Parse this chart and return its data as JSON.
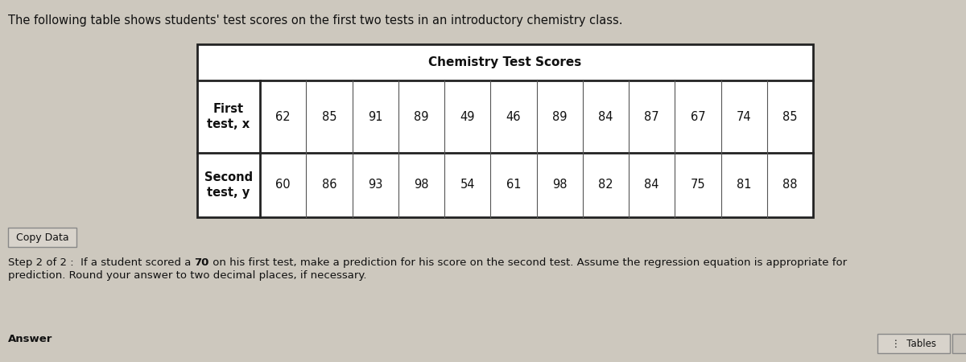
{
  "title_text": "The following table shows students' test scores on the first two tests in an introductory chemistry class.",
  "table_title": "Chemistry Test Scores",
  "row1_label": "First\ntest, x",
  "row2_label": "Second\ntest, y",
  "row1_values": [
    62,
    85,
    91,
    89,
    49,
    46,
    89,
    84,
    87,
    67,
    74,
    85
  ],
  "row2_values": [
    60,
    86,
    93,
    98,
    54,
    61,
    98,
    82,
    84,
    75,
    81,
    88
  ],
  "copy_data_label": "Copy Data",
  "step_prefix": "Step 2 of 2 :  If a student scored a ",
  "step_bold": "70",
  "step_suffix": " on his first test, make a prediction for his score on the second test. Assume the regression equation is appropriate for",
  "step_line2": "prediction. Round your answer to two decimal places, if necessary.",
  "answer_label": "Answer",
  "tables_label": "Tables",
  "bg_color": "#cdc8be",
  "table_bg": "white",
  "table_border": "#333333",
  "text_color": "#111111",
  "title_fontsize": 10.5,
  "table_title_fontsize": 11,
  "cell_fontsize": 10.5,
  "step_fontsize": 9.5,
  "label_fontsize": 9.5
}
